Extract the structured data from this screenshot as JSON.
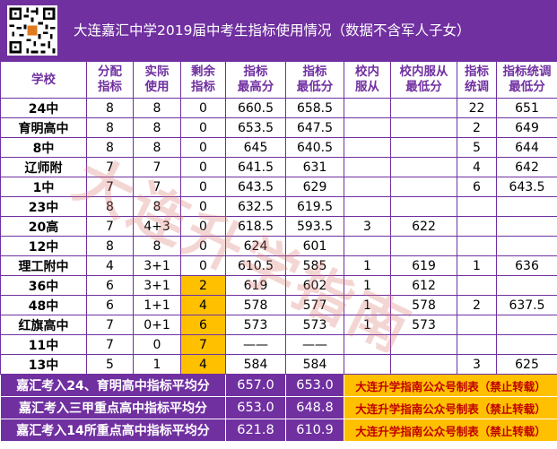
{
  "title": "大连嘉汇中学2019届中考生指标使用情况（数据不含军人子女）",
  "watermark": "大连升学指南",
  "headers": {
    "school": "学校",
    "alloc": [
      "分配",
      "指标"
    ],
    "used": [
      "实际",
      "使用"
    ],
    "remain": [
      "剩余",
      "指标"
    ],
    "max": [
      "指标",
      "最高分"
    ],
    "min": [
      "指标",
      "最低分"
    ],
    "obey": [
      "校内",
      "服从"
    ],
    "obeymin": [
      "校内服从",
      "最低分"
    ],
    "adj": [
      "指标",
      "统调"
    ],
    "adjmin": [
      "指标统调",
      "最低分"
    ]
  },
  "rows": [
    {
      "school": "24中",
      "alloc": "8",
      "used": "8",
      "remain": "0",
      "max": "660.5",
      "min": "658.5",
      "obey": "",
      "obeymin": "",
      "adj": "22",
      "adjmin": "651",
      "highlight": false
    },
    {
      "school": "育明高中",
      "alloc": "8",
      "used": "8",
      "remain": "0",
      "max": "653.5",
      "min": "647.5",
      "obey": "",
      "obeymin": "",
      "adj": "2",
      "adjmin": "649",
      "highlight": false
    },
    {
      "school": "8中",
      "alloc": "8",
      "used": "8",
      "remain": "0",
      "max": "645",
      "min": "640.5",
      "obey": "",
      "obeymin": "",
      "adj": "5",
      "adjmin": "644",
      "highlight": false
    },
    {
      "school": "辽师附",
      "alloc": "7",
      "used": "7",
      "remain": "0",
      "max": "641.5",
      "min": "631",
      "obey": "",
      "obeymin": "",
      "adj": "4",
      "adjmin": "642",
      "highlight": false
    },
    {
      "school": "1中",
      "alloc": "7",
      "used": "7",
      "remain": "0",
      "max": "643.5",
      "min": "629",
      "obey": "",
      "obeymin": "",
      "adj": "6",
      "adjmin": "643.5",
      "highlight": false
    },
    {
      "school": "23中",
      "alloc": "8",
      "used": "8",
      "remain": "0",
      "max": "632.5",
      "min": "619.5",
      "obey": "",
      "obeymin": "",
      "adj": "",
      "adjmin": "",
      "highlight": false
    },
    {
      "school": "20高",
      "alloc": "7",
      "used": "4+3",
      "remain": "0",
      "max": "618.5",
      "min": "593.5",
      "obey": "3",
      "obeymin": "622",
      "adj": "",
      "adjmin": "",
      "highlight": false
    },
    {
      "school": "12中",
      "alloc": "8",
      "used": "8",
      "remain": "0",
      "max": "624",
      "min": "601",
      "obey": "",
      "obeymin": "",
      "adj": "",
      "adjmin": "",
      "highlight": false
    },
    {
      "school": "理工附中",
      "alloc": "4",
      "used": "3+1",
      "remain": "0",
      "max": "610.5",
      "min": "585",
      "obey": "1",
      "obeymin": "619",
      "adj": "1",
      "adjmin": "636",
      "highlight": false
    },
    {
      "school": "36中",
      "alloc": "6",
      "used": "3+1",
      "remain": "2",
      "max": "619",
      "min": "602",
      "obey": "1",
      "obeymin": "612",
      "adj": "",
      "adjmin": "",
      "highlight": true
    },
    {
      "school": "48中",
      "alloc": "6",
      "used": "1+1",
      "remain": "4",
      "max": "578",
      "min": "577",
      "obey": "1",
      "obeymin": "578",
      "adj": "2",
      "adjmin": "637.5",
      "highlight": true
    },
    {
      "school": "红旗高中",
      "alloc": "7",
      "used": "0+1",
      "remain": "6",
      "max": "573",
      "min": "573",
      "obey": "1",
      "obeymin": "573",
      "adj": "",
      "adjmin": "",
      "highlight": true
    },
    {
      "school": "11中",
      "alloc": "7",
      "used": "0",
      "remain": "7",
      "max": "——",
      "min": "——",
      "obey": "",
      "obeymin": "",
      "adj": "",
      "adjmin": "",
      "highlight": true
    },
    {
      "school": "13中",
      "alloc": "5",
      "used": "1",
      "remain": "4",
      "max": "584",
      "min": "584",
      "obey": "",
      "obeymin": "",
      "adj": "3",
      "adjmin": "625",
      "highlight": true
    }
  ],
  "footer": [
    {
      "label": "嘉汇考入24、育明高中指标平均分",
      "max": "657.0",
      "min": "653.0",
      "note": "大连升学指南公众号制表（禁止转载）"
    },
    {
      "label": "嘉汇考入三甲重点高中指标平均分",
      "max": "653.0",
      "min": "648.8",
      "note": "大连升学指南公众号制表（禁止转载）"
    },
    {
      "label": "嘉汇考入14所重点高中指标平均分",
      "max": "621.8",
      "min": "610.9",
      "note": "大连升学指南公众号制表（禁止转载）"
    }
  ],
  "colors": {
    "header_bg": "#7030a0",
    "highlight": "#ffc000",
    "note_text": "#c00000"
  },
  "icons": {
    "qr": "qr-code-icon"
  }
}
